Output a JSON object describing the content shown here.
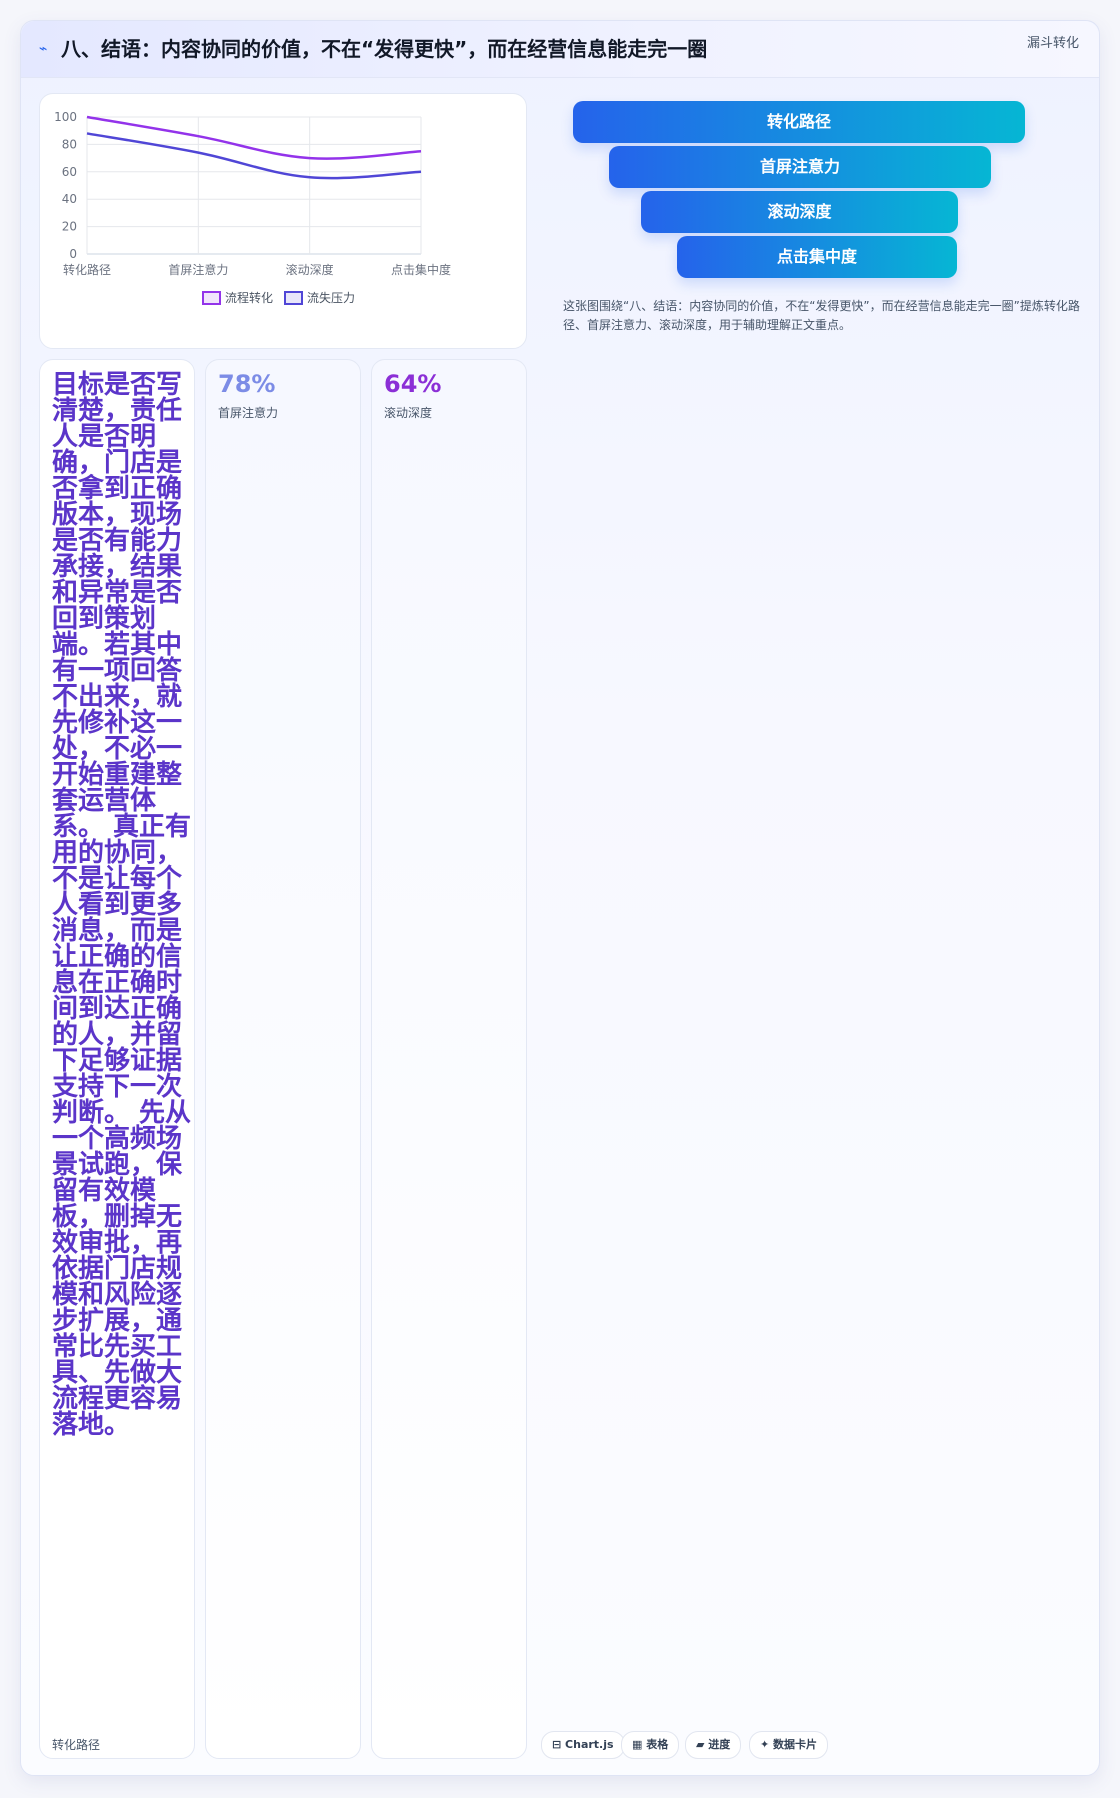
{
  "header": {
    "icon": "⌁",
    "title": "八、结语：内容协同的价值，不在“发得更快”，而在经营信息能走完一圈",
    "tag": "漏斗转化"
  },
  "chart_data": {
    "type": "line",
    "x": [
      "转化路径",
      "首屏注意力",
      "滚动深度",
      "点击集中度"
    ],
    "ylim": [
      0,
      100
    ],
    "yticks": [
      0,
      20,
      40,
      60,
      80,
      100
    ],
    "grid": true,
    "legend_position": "bottom",
    "series": [
      {
        "name": "流程转化",
        "values": [
          100,
          86,
          70,
          75
        ],
        "color": "#9333ea"
      },
      {
        "name": "流失压力",
        "values": [
          88,
          74,
          56,
          60
        ],
        "color": "#5046d6"
      }
    ]
  },
  "funnel": {
    "stages": [
      "转化路径",
      "首屏注意力",
      "滚动深度",
      "点击集中度"
    ],
    "caption": "这张图围绕“八、结语：内容协同的价值，不在“发得更快”，而在经营信息能走完一圈”提炼转化路径、首屏注意力、滚动深度，用于辅助理解正文重点。"
  },
  "text_card": {
    "body": "目标是否写清楚，责任人是否明确，门店是否拿到正确版本，现场是否有能力承接，结果和异常是否回到策划端。若其中有一项回答不出来，就先修补这一处，不必一开始重建整套运营体系。 真正有用的协同，不是让每个人看到更多消息，而是让正确的信息在正确时间到达正确的人，并留下足够证据支持下一次判断。 先从一个高频场景试跑，保留有效模板，删掉无效审批，再依据门店规模和风险逐步扩展，通常比先买工具、先做大流程更容易落地。",
    "label": "转化路径"
  },
  "stats": [
    {
      "value": "78%",
      "label": "首屏注意力",
      "color": "#7c8ce6"
    },
    {
      "value": "64%",
      "label": "滚动深度",
      "color": "#8b2fd6"
    }
  ],
  "chips": [
    "⊟ Chart.js",
    "▦ 表格",
    "▰ 进度",
    "✦ 数据卡片"
  ]
}
